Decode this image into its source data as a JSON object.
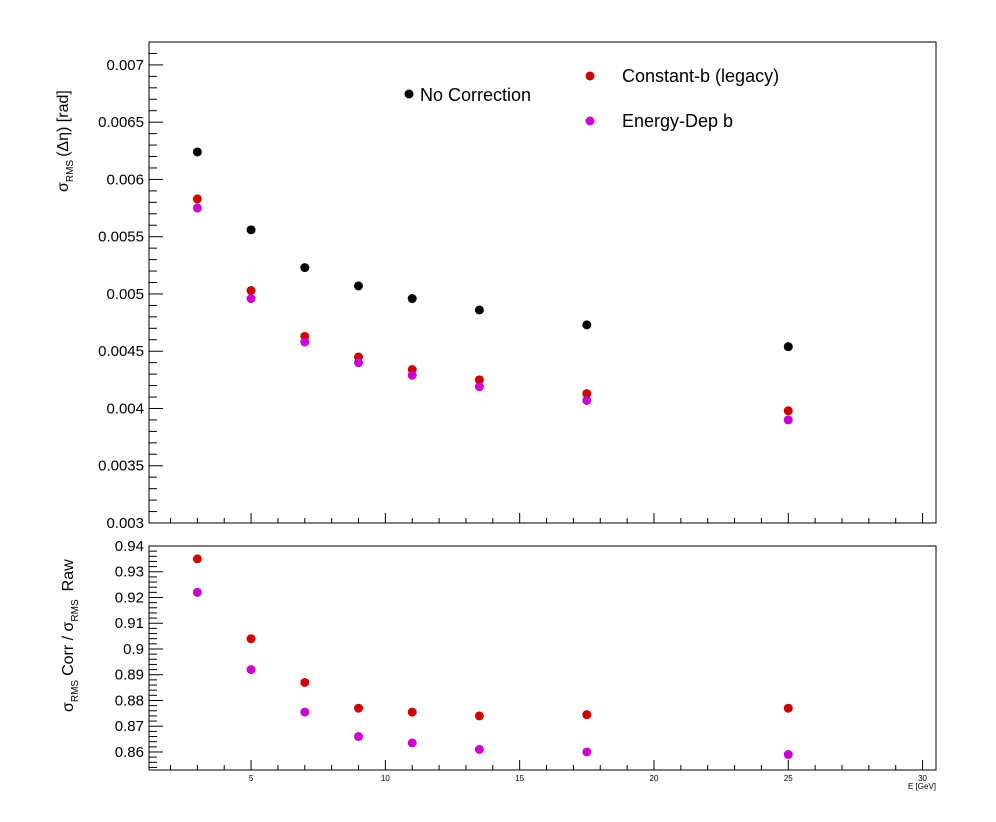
{
  "chart_data": [
    {
      "type": "scatter",
      "panel": "top",
      "ylabel": {
        "sigma": "σ",
        "sub": "RMS",
        "rest": "(Δη) [rad]"
      },
      "ylim": [
        0.003,
        0.0072
      ],
      "xlim": [
        1.2,
        30.5
      ],
      "yticks": [
        {
          "v": 0.003,
          "label": "0.003"
        },
        {
          "v": 0.0035,
          "label": "0.0035"
        },
        {
          "v": 0.004,
          "label": "0.004"
        },
        {
          "v": 0.0045,
          "label": "0.0045"
        },
        {
          "v": 0.005,
          "label": "0.005"
        },
        {
          "v": 0.0055,
          "label": "0.0055"
        },
        {
          "v": 0.006,
          "label": "0.006"
        },
        {
          "v": 0.0065,
          "label": "0.0065"
        },
        {
          "v": 0.007,
          "label": "0.007"
        }
      ],
      "x": [
        3,
        5,
        7,
        9,
        11,
        13.5,
        17.5,
        25
      ],
      "series": [
        {
          "name": "No Correction",
          "color": "#000000",
          "values": [
            0.00624,
            0.00556,
            0.00523,
            0.00507,
            0.00496,
            0.00486,
            0.00473,
            0.00454
          ]
        },
        {
          "name": "Constant-b (legacy)",
          "color": "#cc0000",
          "values": [
            0.00583,
            0.00503,
            0.00463,
            0.00445,
            0.00434,
            0.00425,
            0.00413,
            0.00398
          ]
        },
        {
          "name": "Energy-Dep b",
          "color": "#cc00cc",
          "values": [
            0.00575,
            0.00496,
            0.00458,
            0.0044,
            0.00429,
            0.00419,
            0.00407,
            0.0039
          ]
        }
      ],
      "legend": "top"
    },
    {
      "type": "scatter",
      "panel": "bottom",
      "ylabel": {
        "sigma1": "σ",
        "sub1": "RMS",
        "mid": "Corr / ",
        "sigma2": "σ",
        "sub2": "RMS",
        "end": "Raw"
      },
      "xlabel": "E  [GeV]",
      "ylim": [
        0.853,
        0.94
      ],
      "xlim": [
        1.2,
        30.5
      ],
      "yticks": [
        {
          "v": 0.86,
          "label": "0.86"
        },
        {
          "v": 0.87,
          "label": "0.87"
        },
        {
          "v": 0.88,
          "label": "0.88"
        },
        {
          "v": 0.89,
          "label": "0.89"
        },
        {
          "v": 0.9,
          "label": "0.9"
        },
        {
          "v": 0.91,
          "label": "0.91"
        },
        {
          "v": 0.92,
          "label": "0.92"
        },
        {
          "v": 0.93,
          "label": "0.93"
        },
        {
          "v": 0.94,
          "label": "0.94"
        }
      ],
      "xticks": [
        {
          "v": 5,
          "label": "5"
        },
        {
          "v": 10,
          "label": "10"
        },
        {
          "v": 15,
          "label": "15"
        },
        {
          "v": 20,
          "label": "20"
        },
        {
          "v": 25,
          "label": "25"
        },
        {
          "v": 30,
          "label": "30"
        }
      ],
      "x": [
        3,
        5,
        7,
        9,
        11,
        13.5,
        17.5,
        25
      ],
      "series": [
        {
          "name": "Constant-b (legacy)",
          "color": "#cc0000",
          "values": [
            0.935,
            0.904,
            0.887,
            0.877,
            0.8755,
            0.874,
            0.8745,
            0.877
          ]
        },
        {
          "name": "Energy-Dep b",
          "color": "#cc00cc",
          "values": [
            0.922,
            0.892,
            0.8755,
            0.866,
            0.8635,
            0.861,
            0.86,
            0.859
          ]
        }
      ]
    }
  ]
}
